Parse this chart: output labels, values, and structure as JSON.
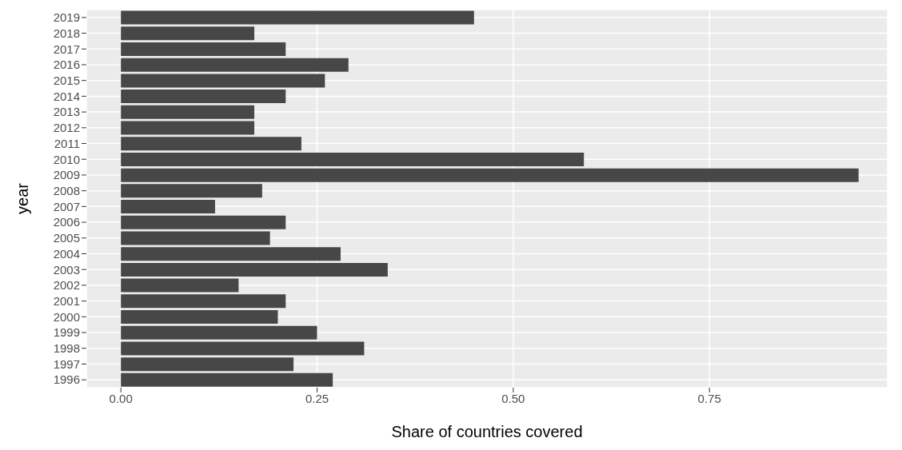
{
  "chart_data": {
    "type": "bar",
    "orientation": "horizontal",
    "xlabel": "Share of countries covered",
    "ylabel": "year",
    "categories": [
      "2019",
      "2018",
      "2017",
      "2016",
      "2015",
      "2014",
      "2013",
      "2012",
      "2011",
      "2010",
      "2009",
      "2008",
      "2007",
      "2006",
      "2005",
      "2004",
      "2003",
      "2002",
      "2001",
      "2000",
      "1999",
      "1998",
      "1997",
      "1996"
    ],
    "values": [
      0.45,
      0.17,
      0.21,
      0.29,
      0.26,
      0.21,
      0.17,
      0.17,
      0.23,
      0.59,
      0.94,
      0.18,
      0.12,
      0.21,
      0.19,
      0.28,
      0.34,
      0.15,
      0.21,
      0.2,
      0.25,
      0.31,
      0.22,
      0.27
    ],
    "color": "#474747",
    "xlim": [
      -0.044,
      0.977
    ],
    "xticks": [
      {
        "value": 0,
        "label": "0.00"
      },
      {
        "value": 0.25,
        "label": "0.25"
      },
      {
        "value": 0.5,
        "label": "0.50"
      },
      {
        "value": 0.75,
        "label": "0.75"
      }
    ],
    "grid": true
  }
}
